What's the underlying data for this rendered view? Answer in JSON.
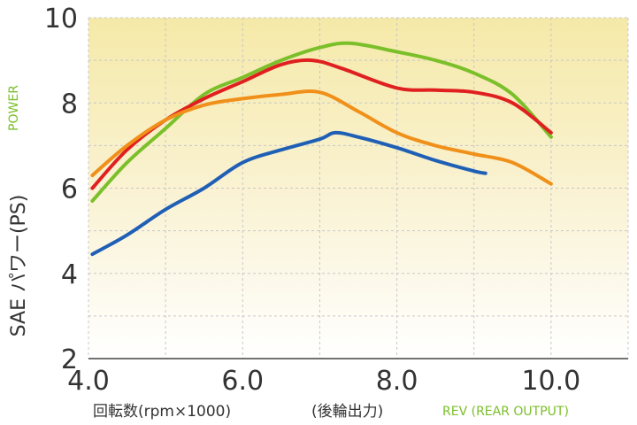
{
  "chart_data": {
    "type": "line",
    "ylabel": "SAE パワー(PS)",
    "ylabel_en": "POWER",
    "xlabel": "回転数(rpm×1000)",
    "xlabel_note": "(後輪出力)",
    "xlabel_en": "REV (REAR OUTPUT)",
    "xlim": [
      4.0,
      11.0
    ],
    "ylim": [
      2,
      10
    ],
    "x_ticks": [
      {
        "value": 4.0,
        "label": "4.0"
      },
      {
        "value": 6.0,
        "label": "6.0"
      },
      {
        "value": 8.0,
        "label": "8.0"
      },
      {
        "value": 10.0,
        "label": "10.0"
      }
    ],
    "y_ticks": [
      {
        "value": 2,
        "label": "2"
      },
      {
        "value": 4,
        "label": "4"
      },
      {
        "value": 6,
        "label": "6"
      },
      {
        "value": 8,
        "label": "8"
      },
      {
        "value": 10,
        "label": "10"
      }
    ],
    "grid": true,
    "series": [
      {
        "color": "#7bbf2a",
        "points": [
          [
            4.05,
            5.7
          ],
          [
            4.5,
            6.6
          ],
          [
            5.0,
            7.4
          ],
          [
            5.5,
            8.2
          ],
          [
            6.0,
            8.6
          ],
          [
            6.5,
            9.0
          ],
          [
            7.0,
            9.3
          ],
          [
            7.4,
            9.4
          ],
          [
            8.0,
            9.2
          ],
          [
            8.5,
            9.0
          ],
          [
            9.0,
            8.7
          ],
          [
            9.5,
            8.2
          ],
          [
            10.0,
            7.2
          ]
        ]
      },
      {
        "color": "#e02020",
        "points": [
          [
            4.05,
            6.0
          ],
          [
            4.5,
            6.9
          ],
          [
            5.0,
            7.6
          ],
          [
            5.5,
            8.1
          ],
          [
            6.0,
            8.5
          ],
          [
            6.5,
            8.9
          ],
          [
            6.9,
            9.0
          ],
          [
            7.3,
            8.8
          ],
          [
            8.0,
            8.35
          ],
          [
            8.5,
            8.3
          ],
          [
            9.0,
            8.25
          ],
          [
            9.5,
            8.0
          ],
          [
            10.0,
            7.3
          ]
        ]
      },
      {
        "color": "#f0901a",
        "points": [
          [
            4.05,
            6.3
          ],
          [
            4.5,
            7.0
          ],
          [
            5.0,
            7.6
          ],
          [
            5.5,
            7.95
          ],
          [
            6.0,
            8.1
          ],
          [
            6.5,
            8.2
          ],
          [
            7.0,
            8.25
          ],
          [
            7.5,
            7.8
          ],
          [
            8.0,
            7.3
          ],
          [
            8.5,
            7.0
          ],
          [
            9.0,
            6.8
          ],
          [
            9.5,
            6.6
          ],
          [
            10.0,
            6.1
          ]
        ]
      },
      {
        "color": "#1f5fb5",
        "points": [
          [
            4.05,
            4.45
          ],
          [
            4.5,
            4.9
          ],
          [
            5.0,
            5.5
          ],
          [
            5.5,
            6.0
          ],
          [
            6.0,
            6.6
          ],
          [
            6.5,
            6.9
          ],
          [
            7.0,
            7.15
          ],
          [
            7.2,
            7.3
          ],
          [
            7.5,
            7.2
          ],
          [
            8.0,
            6.95
          ],
          [
            8.5,
            6.65
          ],
          [
            9.0,
            6.4
          ],
          [
            9.15,
            6.35
          ]
        ]
      }
    ]
  }
}
